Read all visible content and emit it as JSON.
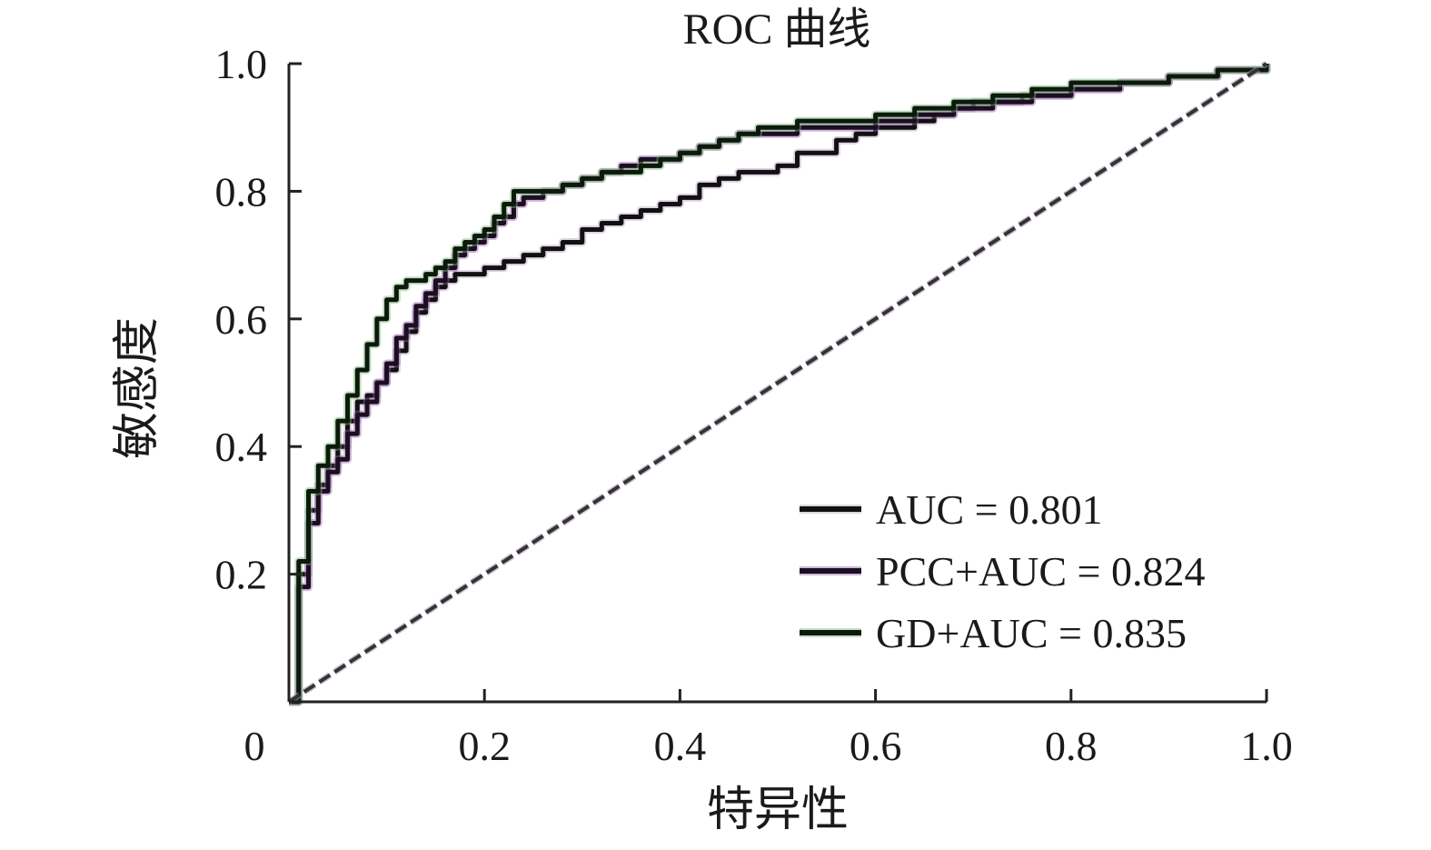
{
  "chart_data": {
    "type": "line",
    "title": "ROC 曲线",
    "xlabel": "特异性",
    "ylabel": "敏感度",
    "xlim": [
      0,
      1
    ],
    "ylim": [
      0,
      1
    ],
    "x_ticks": [
      {
        "value": 0,
        "label": "0"
      },
      {
        "value": 0.2,
        "label": "0.2"
      },
      {
        "value": 0.4,
        "label": "0.4"
      },
      {
        "value": 0.6,
        "label": "0.6"
      },
      {
        "value": 0.8,
        "label": "0.8"
      },
      {
        "value": 1.0,
        "label": "1.0"
      }
    ],
    "y_ticks": [
      {
        "value": 0.2,
        "label": "0.2"
      },
      {
        "value": 0.4,
        "label": "0.4"
      },
      {
        "value": 0.6,
        "label": "0.6"
      },
      {
        "value": 0.8,
        "label": "0.8"
      },
      {
        "value": 1.0,
        "label": "1.0"
      }
    ],
    "grid": false,
    "legend_position": "bottom-right",
    "series": [
      {
        "name": "AUC = 0.801",
        "color": "#111111",
        "shadow_color": "#b8a0c0",
        "x": [
          0,
          0.01,
          0.02,
          0.03,
          0.04,
          0.05,
          0.06,
          0.07,
          0.08,
          0.09,
          0.1,
          0.11,
          0.12,
          0.13,
          0.14,
          0.15,
          0.16,
          0.17,
          0.18,
          0.2,
          0.22,
          0.24,
          0.26,
          0.28,
          0.3,
          0.32,
          0.34,
          0.36,
          0.38,
          0.4,
          0.42,
          0.44,
          0.46,
          0.48,
          0.5,
          0.52,
          0.54,
          0.56,
          0.58,
          0.6,
          0.62,
          0.64,
          0.66,
          0.68,
          0.7,
          0.75,
          0.8,
          0.85,
          0.9,
          0.95,
          1.0
        ],
        "y": [
          0,
          0.2,
          0.3,
          0.34,
          0.37,
          0.4,
          0.44,
          0.47,
          0.48,
          0.5,
          0.52,
          0.55,
          0.58,
          0.61,
          0.63,
          0.65,
          0.66,
          0.67,
          0.67,
          0.68,
          0.69,
          0.7,
          0.71,
          0.72,
          0.74,
          0.75,
          0.76,
          0.77,
          0.78,
          0.79,
          0.81,
          0.82,
          0.83,
          0.83,
          0.84,
          0.86,
          0.86,
          0.88,
          0.89,
          0.9,
          0.9,
          0.91,
          0.92,
          0.93,
          0.94,
          0.95,
          0.96,
          0.97,
          0.98,
          0.99,
          1.0
        ]
      },
      {
        "name": "PCC+AUC = 0.824",
        "color": "#1a0f1e",
        "shadow_color": "#9a5fb0",
        "x": [
          0,
          0.01,
          0.02,
          0.03,
          0.04,
          0.05,
          0.06,
          0.07,
          0.08,
          0.09,
          0.1,
          0.11,
          0.12,
          0.13,
          0.14,
          0.15,
          0.16,
          0.17,
          0.18,
          0.19,
          0.2,
          0.21,
          0.22,
          0.23,
          0.24,
          0.26,
          0.28,
          0.3,
          0.32,
          0.34,
          0.36,
          0.38,
          0.4,
          0.42,
          0.44,
          0.46,
          0.48,
          0.5,
          0.52,
          0.56,
          0.6,
          0.64,
          0.68,
          0.72,
          0.76,
          0.8,
          0.85,
          0.9,
          0.95,
          1.0
        ],
        "y": [
          0,
          0.18,
          0.28,
          0.33,
          0.36,
          0.38,
          0.42,
          0.45,
          0.47,
          0.5,
          0.53,
          0.57,
          0.59,
          0.62,
          0.64,
          0.66,
          0.68,
          0.7,
          0.71,
          0.72,
          0.73,
          0.75,
          0.76,
          0.78,
          0.79,
          0.8,
          0.81,
          0.82,
          0.83,
          0.84,
          0.85,
          0.85,
          0.86,
          0.87,
          0.88,
          0.89,
          0.89,
          0.89,
          0.9,
          0.9,
          0.91,
          0.92,
          0.93,
          0.94,
          0.95,
          0.96,
          0.97,
          0.98,
          0.99,
          1.0
        ]
      },
      {
        "name": "GD+AUC = 0.835",
        "color": "#0c1a0c",
        "shadow_color": "#7fb87f",
        "x": [
          0,
          0.01,
          0.02,
          0.03,
          0.04,
          0.05,
          0.06,
          0.07,
          0.08,
          0.09,
          0.1,
          0.11,
          0.12,
          0.13,
          0.14,
          0.15,
          0.16,
          0.17,
          0.18,
          0.19,
          0.2,
          0.21,
          0.22,
          0.23,
          0.24,
          0.26,
          0.28,
          0.3,
          0.32,
          0.34,
          0.36,
          0.38,
          0.4,
          0.42,
          0.44,
          0.46,
          0.48,
          0.5,
          0.52,
          0.56,
          0.6,
          0.64,
          0.68,
          0.72,
          0.76,
          0.8,
          0.85,
          0.9,
          0.95,
          1.0
        ],
        "y": [
          0,
          0.22,
          0.33,
          0.37,
          0.4,
          0.44,
          0.48,
          0.52,
          0.56,
          0.6,
          0.63,
          0.65,
          0.66,
          0.66,
          0.67,
          0.68,
          0.69,
          0.71,
          0.72,
          0.73,
          0.74,
          0.76,
          0.78,
          0.8,
          0.8,
          0.8,
          0.81,
          0.82,
          0.83,
          0.83,
          0.84,
          0.85,
          0.86,
          0.87,
          0.88,
          0.89,
          0.9,
          0.9,
          0.91,
          0.91,
          0.92,
          0.93,
          0.94,
          0.95,
          0.96,
          0.97,
          0.97,
          0.98,
          0.99,
          1.0
        ]
      }
    ],
    "reference_line": {
      "x": [
        0,
        1
      ],
      "y": [
        0,
        1
      ],
      "style": "dashed",
      "color": "#333333"
    }
  }
}
